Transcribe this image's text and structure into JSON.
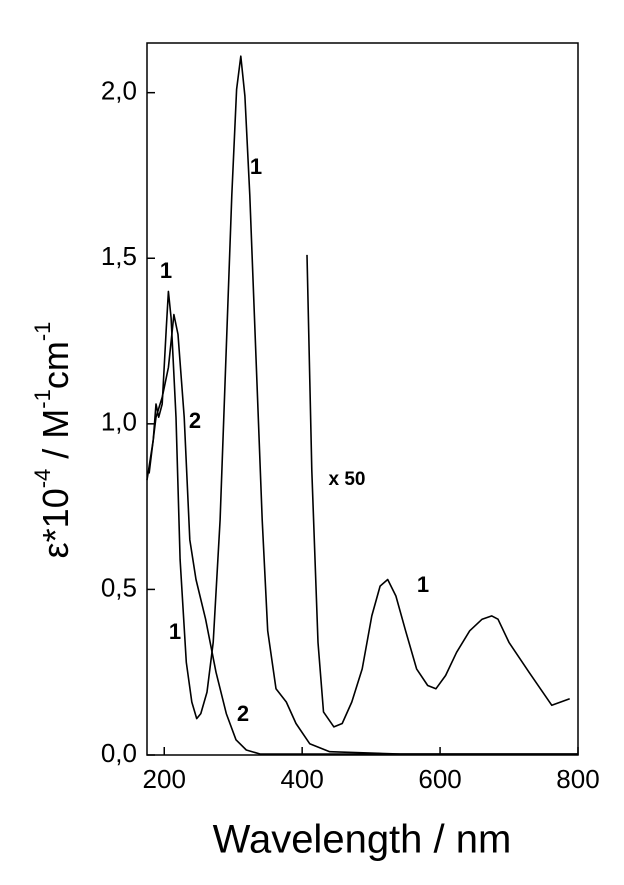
{
  "chart_data": {
    "type": "line",
    "x_label": "Wavelength / nm",
    "y_label_parts": [
      "ε*10",
      "-4",
      " / M",
      "-1",
      "cm",
      "-1"
    ],
    "xlim": [
      175,
      800
    ],
    "ylim": [
      0,
      2.15
    ],
    "xticks": [
      200,
      400,
      600,
      800
    ],
    "yticks": [
      {
        "value": 0,
        "label": "0,0"
      },
      {
        "value": 0.5,
        "label": "0,5"
      },
      {
        "value": 1,
        "label": "1,0"
      },
      {
        "value": 1.5,
        "label": "1,5"
      },
      {
        "value": 2,
        "label": "2,0"
      }
    ],
    "series": [
      {
        "color": "#000000",
        "x": [
          175,
          184,
          188,
          192,
          197,
          203,
          206,
          210,
          217,
          223,
          232,
          240,
          247,
          253,
          262,
          271,
          281,
          290,
          298,
          305,
          311,
          317,
          324,
          333,
          342,
          350,
          362,
          377,
          391,
          411,
          440,
          542,
          800
        ],
        "values": [
          0.83,
          0.95,
          1.06,
          1.02,
          1.06,
          1.29,
          1.4,
          1.32,
          1.02,
          0.59,
          0.28,
          0.16,
          0.11,
          0.125,
          0.19,
          0.34,
          0.71,
          1.23,
          1.69,
          2.01,
          2.11,
          1.99,
          1.69,
          1.2,
          0.71,
          0.375,
          0.2,
          0.16,
          0.095,
          0.034,
          0.01,
          0.003,
          0.003
        ]
      },
      {
        "color": "#000000",
        "x": [
          178,
          188,
          197,
          206,
          214,
          220,
          229,
          237,
          246,
          260,
          275,
          290,
          304,
          319,
          339,
          800
        ],
        "values": [
          0.85,
          1.02,
          1.08,
          1.17,
          1.33,
          1.27,
          1.02,
          0.65,
          0.53,
          0.41,
          0.25,
          0.125,
          0.046,
          0.015,
          0.003,
          0.003
        ]
      },
      {
        "color": "#000000",
        "x": [
          407,
          414,
          423,
          431,
          446,
          458,
          472,
          487,
          501,
          513,
          524,
          536,
          550,
          566,
          582,
          594,
          608,
          624,
          643,
          661,
          675,
          684,
          700,
          729,
          762,
          788
        ],
        "values": [
          1.51,
          0.86,
          0.34,
          0.13,
          0.085,
          0.095,
          0.16,
          0.26,
          0.42,
          0.51,
          0.53,
          0.48,
          0.375,
          0.26,
          0.21,
          0.2,
          0.24,
          0.31,
          0.375,
          0.41,
          0.42,
          0.41,
          0.34,
          0.25,
          0.15,
          0.17
        ]
      }
    ],
    "annotations": [
      "1",
      "1",
      "2",
      "x 50",
      "1",
      "1",
      "2"
    ]
  }
}
